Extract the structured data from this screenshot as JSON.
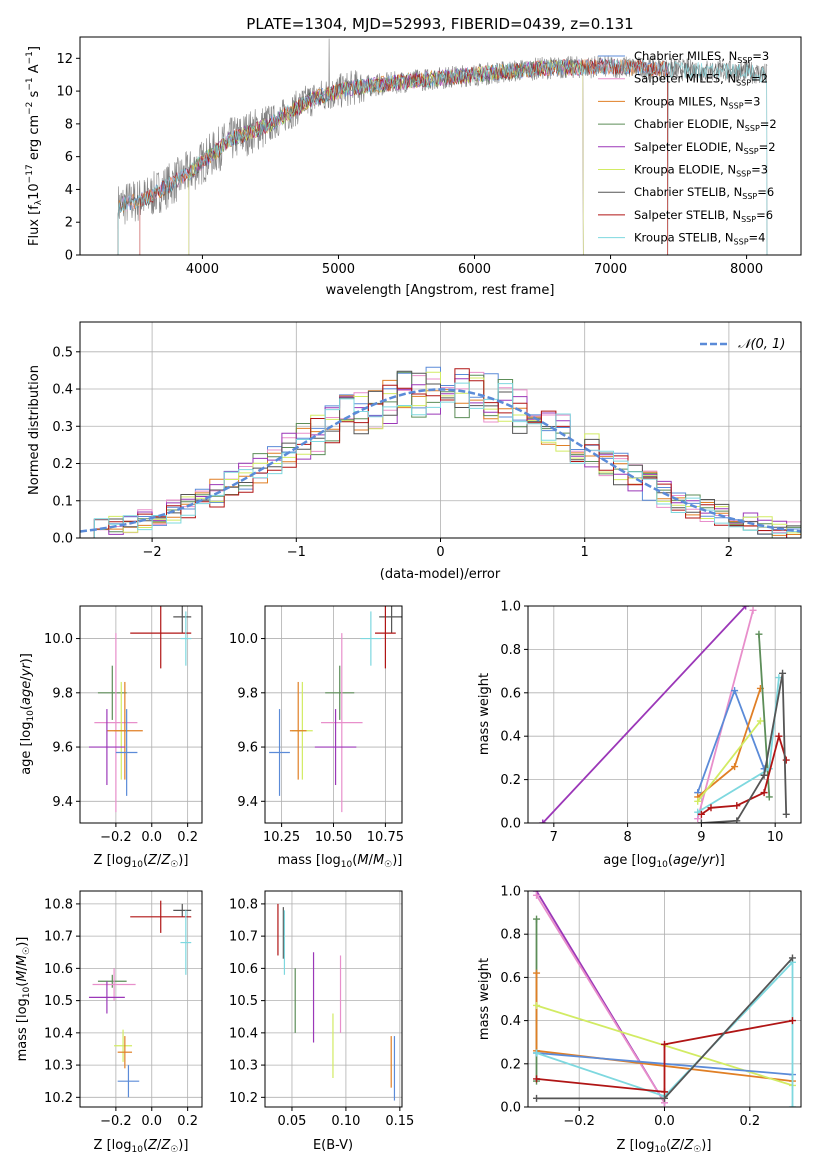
{
  "figure": {
    "title": "PLATE=1304, MJD=52993, FIBERID=0439, z=0.131"
  },
  "colors": {
    "chabrier_miles": "#5b8bd8",
    "salpeter_miles": "#e88fcb",
    "kroupa_miles": "#e07f25",
    "chabrier_elodie": "#5c8d58",
    "salpeter_elodie": "#9b37b8",
    "kroupa_elodie": "#d2eb63",
    "chabrier_stelib": "#555555",
    "salpeter_stelib": "#b01515",
    "kroupa_stelib": "#7ed8df",
    "data": "#808080",
    "gaussian": "#5b8bd8"
  },
  "chart_data": [
    {
      "id": "spectrum",
      "type": "line",
      "title": "PLATE=1304, MJD=52993, FIBERID=0439, z=0.131",
      "xlabel": "wavelength [Angstrom, rest frame]",
      "ylabel": "Flux [f_λ 10^-17 erg cm^-2 s^-1 A^-1]",
      "xlim": [
        3100,
        8400
      ],
      "ylim": [
        0,
        13.3
      ],
      "xticks": [
        4000,
        5000,
        6000,
        7000,
        8000
      ],
      "yticks": [
        0,
        2,
        4,
        6,
        8,
        10,
        12
      ],
      "legend": "upper-right",
      "data_continuum_points": [
        [
          3380,
          3.0
        ],
        [
          3600,
          3.5
        ],
        [
          3900,
          5.0
        ],
        [
          4200,
          7.0
        ],
        [
          4500,
          8.0
        ],
        [
          4800,
          9.5
        ],
        [
          5100,
          10.2
        ],
        [
          5500,
          10.6
        ],
        [
          6000,
          11.0
        ],
        [
          6500,
          11.4
        ],
        [
          7000,
          11.5
        ],
        [
          7500,
          11.3
        ],
        [
          8000,
          11.2
        ],
        [
          8150,
          11.0
        ]
      ],
      "series": [
        {
          "name": "Chabrier MILES, N_SSP=3",
          "color_key": "chabrier_miles",
          "xrange": [
            3380,
            7420
          ]
        },
        {
          "name": "Salpeter MILES, N_SSP=2",
          "color_key": "salpeter_miles",
          "xrange": [
            3380,
            7420
          ]
        },
        {
          "name": "Kroupa MILES, N_SSP=3",
          "color_key": "kroupa_miles",
          "xrange": [
            3380,
            7420
          ]
        },
        {
          "name": "Chabrier ELODIE, N_SSP=2",
          "color_key": "chabrier_elodie",
          "xrange": [
            3900,
            6800
          ]
        },
        {
          "name": "Salpeter ELODIE, N_SSP=2",
          "color_key": "salpeter_elodie",
          "xrange": [
            3900,
            6800
          ]
        },
        {
          "name": "Kroupa ELODIE, N_SSP=3",
          "color_key": "kroupa_elodie",
          "xrange": [
            3900,
            6800
          ]
        },
        {
          "name": "Chabrier STELIB, N_SSP=6",
          "color_key": "chabrier_stelib",
          "xrange": [
            3380,
            8150
          ]
        },
        {
          "name": "Salpeter STELIB, N_SSP=6",
          "color_key": "salpeter_stelib",
          "xrange": [
            3540,
            7420
          ]
        },
        {
          "name": "Kroupa STELIB, N_SSP=4",
          "color_key": "kroupa_stelib",
          "xrange": [
            3380,
            8150
          ]
        }
      ]
    },
    {
      "id": "residuals",
      "type": "line",
      "xlabel": "(data-model)/error",
      "ylabel": "Normed distribution",
      "xlim": [
        -2.5,
        2.5
      ],
      "ylim": [
        0,
        0.58
      ],
      "xticks": [
        -2,
        -1,
        0,
        1,
        2
      ],
      "yticks": [
        0.0,
        0.1,
        0.2,
        0.3,
        0.4,
        0.5
      ],
      "grid": true,
      "legend": "upper-right",
      "gaussian_label": "𝒩(0, 1)",
      "bin_width": 0.1
    },
    {
      "id": "age_vs_Z",
      "type": "scatter",
      "xlabel": "Z [log10(Z/Z☉)]",
      "ylabel": "age [log10(age/yr)]",
      "xlim": [
        -0.4,
        0.28
      ],
      "ylim": [
        9.32,
        10.12
      ],
      "xticks": [
        -0.2,
        0.0,
        0.2
      ],
      "xticklabels": [
        "−0.2",
        "0.0",
        "0.2"
      ],
      "yticks": [
        9.4,
        9.6,
        9.8,
        10.0
      ],
      "grid": true,
      "points": [
        {
          "color_key": "chabrier_stelib",
          "x": 0.17,
          "y": 10.08,
          "xerr": 0.05,
          "yerr": 0.06
        },
        {
          "color_key": "salpeter_stelib",
          "x": 0.05,
          "y": 10.02,
          "xerr": 0.17,
          "yerr": 0.13
        },
        {
          "color_key": "kroupa_stelib",
          "x": 0.19,
          "y": 10.0,
          "xerr": 0.03,
          "yerr": 0.1
        },
        {
          "color_key": "chabrier_elodie",
          "x": -0.22,
          "y": 9.8,
          "xerr": 0.08,
          "yerr": 0.1
        },
        {
          "color_key": "salpeter_miles",
          "x": -0.2,
          "y": 9.69,
          "xerr": 0.12,
          "yerr": 0.33
        },
        {
          "color_key": "kroupa_elodie",
          "x": -0.17,
          "y": 9.66,
          "xerr": 0.04,
          "yerr": 0.18
        },
        {
          "color_key": "kroupa_miles",
          "x": -0.15,
          "y": 9.66,
          "xerr": 0.1,
          "yerr": 0.18
        },
        {
          "color_key": "salpeter_elodie",
          "x": -0.25,
          "y": 9.6,
          "xerr": 0.1,
          "yerr": 0.14
        },
        {
          "color_key": "chabrier_miles",
          "x": -0.14,
          "y": 9.58,
          "xerr": 0.06,
          "yerr": 0.16
        }
      ]
    },
    {
      "id": "age_vs_mass",
      "type": "scatter",
      "xlabel": "mass [log10(M/M☉)]",
      "xlim": [
        10.17,
        10.83
      ],
      "ylim": [
        9.32,
        10.12
      ],
      "xticks": [
        10.25,
        10.5,
        10.75
      ],
      "xticklabels": [
        "10.25",
        "10.50",
        "10.75"
      ],
      "yticks": [
        9.4,
        9.6,
        9.8,
        10.0
      ],
      "grid": true,
      "points": [
        {
          "color_key": "chabrier_stelib",
          "x": 10.78,
          "y": 10.08,
          "xerr": 0.06,
          "yerr": 0.06
        },
        {
          "color_key": "salpeter_stelib",
          "x": 10.75,
          "y": 10.02,
          "xerr": 0.05,
          "yerr": 0.13
        },
        {
          "color_key": "kroupa_stelib",
          "x": 10.68,
          "y": 10.0,
          "xerr": 0.05,
          "yerr": 0.1
        },
        {
          "color_key": "chabrier_elodie",
          "x": 10.53,
          "y": 9.8,
          "xerr": 0.07,
          "yerr": 0.1
        },
        {
          "color_key": "salpeter_miles",
          "x": 10.54,
          "y": 9.69,
          "xerr": 0.1,
          "yerr": 0.33
        },
        {
          "color_key": "kroupa_elodie",
          "x": 10.35,
          "y": 9.66,
          "xerr": 0.05,
          "yerr": 0.18
        },
        {
          "color_key": "kroupa_miles",
          "x": 10.33,
          "y": 9.66,
          "xerr": 0.04,
          "yerr": 0.18
        },
        {
          "color_key": "salpeter_elodie",
          "x": 10.51,
          "y": 9.6,
          "xerr": 0.1,
          "yerr": 0.14
        },
        {
          "color_key": "chabrier_miles",
          "x": 10.24,
          "y": 9.58,
          "xerr": 0.05,
          "yerr": 0.16
        }
      ]
    },
    {
      "id": "mass_weight_vs_age",
      "type": "line",
      "xlabel": "age [log10(age/yr)]",
      "ylabel": "mass weight",
      "xlim": [
        6.65,
        10.35
      ],
      "ylim": [
        0,
        1.0
      ],
      "xticks": [
        7,
        8,
        9,
        10
      ],
      "yticks": [
        0.0,
        0.2,
        0.4,
        0.6,
        0.8,
        1.0
      ],
      "grid": true,
      "series": [
        {
          "color_key": "salpeter_elodie",
          "x": [
            6.85,
            9.6
          ],
          "y": [
            0.0,
            1.0
          ]
        },
        {
          "color_key": "salpeter_miles",
          "x": [
            8.95,
            9.7
          ],
          "y": [
            0.02,
            0.98
          ]
        },
        {
          "color_key": "chabrier_miles",
          "x": [
            8.95,
            9.45,
            9.85
          ],
          "y": [
            0.14,
            0.61,
            0.25
          ]
        },
        {
          "color_key": "kroupa_miles",
          "x": [
            8.95,
            9.45,
            9.8
          ],
          "y": [
            0.12,
            0.26,
            0.62
          ]
        },
        {
          "color_key": "kroupa_elodie",
          "x": [
            8.95,
            9.8
          ],
          "y": [
            0.1,
            0.47
          ]
        },
        {
          "color_key": "chabrier_elodie",
          "x": [
            9.78,
            9.92
          ],
          "y": [
            0.87,
            0.12
          ]
        },
        {
          "color_key": "kroupa_stelib",
          "x": [
            8.95,
            9.92,
            10.05
          ],
          "y": [
            0.05,
            0.25,
            0.67
          ]
        },
        {
          "color_key": "salpeter_stelib",
          "x": [
            9.0,
            9.13,
            9.48,
            9.85,
            10.05,
            10.15
          ],
          "y": [
            0.04,
            0.07,
            0.08,
            0.14,
            0.4,
            0.29
          ]
        },
        {
          "color_key": "chabrier_stelib",
          "x": [
            9.0,
            9.48,
            9.85,
            10.1,
            10.15
          ],
          "y": [
            0.0,
            0.01,
            0.22,
            0.69,
            0.04
          ]
        }
      ]
    },
    {
      "id": "mass_vs_Z",
      "type": "scatter",
      "xlabel": "Z [log10(Z/Z☉)]",
      "ylabel": "mass [log10(M/M☉)]",
      "xlim": [
        -0.4,
        0.28
      ],
      "ylim": [
        10.17,
        10.84
      ],
      "xticks": [
        -0.2,
        0.0,
        0.2
      ],
      "xticklabels": [
        "−0.2",
        "0.0",
        "0.2"
      ],
      "yticks": [
        10.2,
        10.3,
        10.4,
        10.5,
        10.6,
        10.7,
        10.8
      ],
      "grid": true,
      "points": [
        {
          "color_key": "chabrier_stelib",
          "x": 0.17,
          "y": 10.78,
          "xerr": 0.05,
          "yerr": 0.02
        },
        {
          "color_key": "salpeter_stelib",
          "x": 0.05,
          "y": 10.76,
          "xerr": 0.17,
          "yerr": 0.05
        },
        {
          "color_key": "kroupa_stelib",
          "x": 0.19,
          "y": 10.68,
          "xerr": 0.03,
          "yerr": 0.1
        },
        {
          "color_key": "chabrier_elodie",
          "x": -0.22,
          "y": 10.56,
          "xerr": 0.08,
          "yerr": 0.02
        },
        {
          "color_key": "salpeter_miles",
          "x": -0.21,
          "y": 10.55,
          "xerr": 0.12,
          "yerr": 0.05
        },
        {
          "color_key": "salpeter_elodie",
          "x": -0.25,
          "y": 10.51,
          "xerr": 0.1,
          "yerr": 0.05
        },
        {
          "color_key": "kroupa_elodie",
          "x": -0.16,
          "y": 10.36,
          "xerr": 0.05,
          "yerr": 0.05
        },
        {
          "color_key": "kroupa_miles",
          "x": -0.15,
          "y": 10.34,
          "xerr": 0.04,
          "yerr": 0.05
        },
        {
          "color_key": "chabrier_miles",
          "x": -0.13,
          "y": 10.25,
          "xerr": 0.06,
          "yerr": 0.05
        }
      ]
    },
    {
      "id": "mass_vs_ebv",
      "type": "scatter",
      "xlabel": "E(B-V)",
      "xlim": [
        0.025,
        0.152
      ],
      "ylim": [
        10.17,
        10.84
      ],
      "xticks": [
        0.05,
        0.1,
        0.15
      ],
      "xticklabels": [
        "0.05",
        "0.10",
        "0.15"
      ],
      "yticks": [
        10.2,
        10.3,
        10.4,
        10.5,
        10.6,
        10.7,
        10.8
      ],
      "grid": true,
      "points": [
        {
          "color_key": "salpeter_stelib",
          "x": 0.037,
          "y": 10.72,
          "yerr": 0.08
        },
        {
          "color_key": "chabrier_stelib",
          "x": 0.042,
          "y": 10.71,
          "yerr": 0.08
        },
        {
          "color_key": "kroupa_stelib",
          "x": 0.043,
          "y": 10.68,
          "yerr": 0.1
        },
        {
          "color_key": "chabrier_elodie",
          "x": 0.053,
          "y": 10.5,
          "yerr": 0.1
        },
        {
          "color_key": "salpeter_elodie",
          "x": 0.07,
          "y": 10.51,
          "yerr": 0.14
        },
        {
          "color_key": "kroupa_elodie",
          "x": 0.088,
          "y": 10.36,
          "yerr": 0.1
        },
        {
          "color_key": "salpeter_miles",
          "x": 0.095,
          "y": 10.52,
          "yerr": 0.12
        },
        {
          "color_key": "kroupa_miles",
          "x": 0.142,
          "y": 10.31,
          "yerr": 0.08
        },
        {
          "color_key": "chabrier_miles",
          "x": 0.145,
          "y": 10.29,
          "yerr": 0.1
        }
      ]
    },
    {
      "id": "mass_weight_vs_Z",
      "type": "line",
      "xlabel": "Z [log10(Z/Z☉)]",
      "ylabel": "mass weight",
      "xlim": [
        -0.32,
        0.32
      ],
      "ylim": [
        0,
        1.0
      ],
      "xticks": [
        -0.2,
        0.0,
        0.2
      ],
      "xticklabels": [
        "−0.2",
        "0.0",
        "0.2"
      ],
      "yticks": [
        0.0,
        0.2,
        0.4,
        0.6,
        0.8,
        1.0
      ],
      "grid": true,
      "series": [
        {
          "color_key": "salpeter_elodie",
          "x": [
            -0.3,
            0.0
          ],
          "y": [
            1.0,
            0.02
          ]
        },
        {
          "color_key": "salpeter_miles",
          "x": [
            -0.3,
            0.0
          ],
          "y": [
            0.98,
            0.02
          ]
        },
        {
          "color_key": "chabrier_elodie",
          "x": [
            -0.3,
            -0.3
          ],
          "y": [
            0.87,
            0.12
          ]
        },
        {
          "color_key": "kroupa_miles",
          "x": [
            -0.3,
            -0.3,
            0.3
          ],
          "y": [
            0.62,
            0.26,
            0.12
          ]
        },
        {
          "color_key": "kroupa_elodie",
          "x": [
            -0.3,
            0.3
          ],
          "y": [
            0.47,
            0.1
          ]
        },
        {
          "color_key": "chabrier_miles",
          "x": [
            -0.3,
            0.3
          ],
          "y": [
            0.25,
            0.15
          ]
        },
        {
          "color_key": "kroupa_stelib",
          "x": [
            -0.3,
            0.0,
            0.3,
            0.3
          ],
          "y": [
            0.25,
            0.05,
            0.67,
            0.0
          ]
        },
        {
          "color_key": "salpeter_stelib",
          "x": [
            -0.3,
            0.0,
            0.0,
            0.3
          ],
          "y": [
            0.13,
            0.07,
            0.29,
            0.4
          ]
        },
        {
          "color_key": "chabrier_stelib",
          "x": [
            -0.3,
            0.0,
            0.3
          ],
          "y": [
            0.04,
            0.04,
            0.69
          ]
        }
      ]
    }
  ]
}
